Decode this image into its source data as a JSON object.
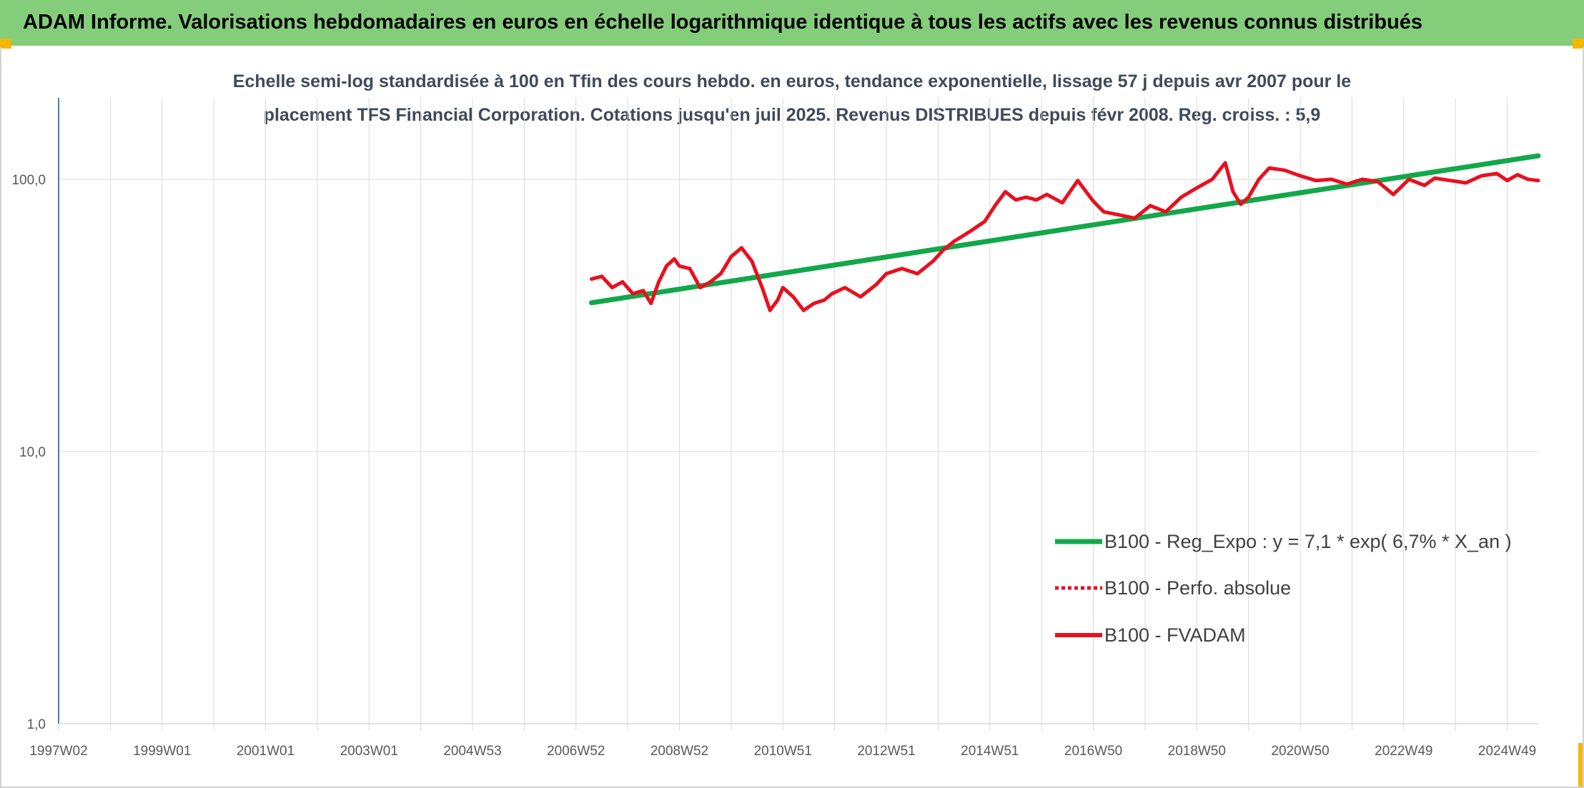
{
  "page_title": "ADAM Informe. Valorisations hebdomadaires en euros en échelle logarithmique identique à tous les actifs avec les revenus connus distribués",
  "colors": {
    "banner": "#84cd7b",
    "corner_accent": "#f5b800",
    "regression": "#12a84a",
    "fvadam": "#e8101e",
    "perfo_absolue": "#e8101e",
    "grid": "#d9d9d9",
    "axis": "#4a7ebb"
  },
  "chart_data": {
    "type": "line",
    "title_lines": [
      "Echelle semi-log standardisée à 100 en Tfin des cours hebdo. en euros, tendance exponentielle, lissage 57 j depuis avr 2007 pour le",
      "placement TFS Financial Corporation. Cotations jusqu'en juil 2025. Revenus DISTRIBUES depuis févr 2008. Reg. croiss. : 5,9"
    ],
    "y_scale": "log",
    "ylim": [
      1,
      200
    ],
    "y_ticks": [
      {
        "value": 1,
        "label": "1,0"
      },
      {
        "value": 10,
        "label": "10,0"
      },
      {
        "value": 100,
        "label": "100,0"
      }
    ],
    "xlim": [
      1997.0,
      2025.6
    ],
    "x_ticks": [
      {
        "value": 1997.0,
        "label": "1997W02"
      },
      {
        "value": 1999.0,
        "label": "1999W01"
      },
      {
        "value": 2001.0,
        "label": "2001W01"
      },
      {
        "value": 2003.0,
        "label": "2003W01"
      },
      {
        "value": 2005.0,
        "label": "2004W53"
      },
      {
        "value": 2007.0,
        "label": "2006W52"
      },
      {
        "value": 2009.0,
        "label": "2008W52"
      },
      {
        "value": 2011.0,
        "label": "2010W51"
      },
      {
        "value": 2013.0,
        "label": "2012W51"
      },
      {
        "value": 2015.0,
        "label": "2014W51"
      },
      {
        "value": 2017.0,
        "label": "2016W50"
      },
      {
        "value": 2019.0,
        "label": "2018W50"
      },
      {
        "value": 2021.0,
        "label": "2020W50"
      },
      {
        "value": 2023.0,
        "label": "2022W49"
      },
      {
        "value": 2025.0,
        "label": "2024W49"
      }
    ],
    "legend_position": "bottom-right",
    "series": [
      {
        "name": "B100 - Reg_Expo : y = 7,1 * exp( 6,7% *  X_an )",
        "style": "solid-thick",
        "color": "#12a84a",
        "x": [
          2007.3,
          2025.6
        ],
        "y": [
          35.2,
          122.0
        ]
      },
      {
        "name": "B100 - Perfo. absolue",
        "style": "dotted",
        "color": "#e8101e",
        "x": [],
        "y": []
      },
      {
        "name": "B100 - FVADAM",
        "style": "solid",
        "color": "#e8101e",
        "x": [
          2007.3,
          2007.5,
          2007.7,
          2007.9,
          2008.1,
          2008.3,
          2008.45,
          2008.6,
          2008.75,
          2008.9,
          2009.0,
          2009.2,
          2009.4,
          2009.6,
          2009.8,
          2010.0,
          2010.2,
          2010.4,
          2010.6,
          2010.75,
          2010.9,
          2011.0,
          2011.2,
          2011.4,
          2011.6,
          2011.8,
          2011.95,
          2012.2,
          2012.5,
          2012.8,
          2013.0,
          2013.3,
          2013.6,
          2013.9,
          2014.1,
          2014.3,
          2014.6,
          2014.9,
          2015.1,
          2015.3,
          2015.5,
          2015.7,
          2015.9,
          2016.1,
          2016.4,
          2016.7,
          2017.0,
          2017.2,
          2017.5,
          2017.8,
          2018.1,
          2018.4,
          2018.7,
          2019.0,
          2019.3,
          2019.55,
          2019.7,
          2019.85,
          2020.0,
          2020.2,
          2020.4,
          2020.7,
          2021.0,
          2021.3,
          2021.6,
          2021.9,
          2022.2,
          2022.5,
          2022.8,
          2023.1,
          2023.4,
          2023.6,
          2023.9,
          2024.2,
          2024.5,
          2024.8,
          2025.0,
          2025.2,
          2025.4,
          2025.6
        ],
        "y": [
          43,
          44,
          40,
          42,
          38,
          39,
          35,
          42,
          48,
          51,
          48,
          47,
          40,
          42,
          45,
          52,
          56,
          50,
          40,
          33,
          36,
          40,
          37,
          33,
          35,
          36,
          38,
          40,
          37,
          41,
          45,
          47,
          45,
          50,
          55,
          59,
          64,
          70,
          80,
          90,
          84,
          86,
          84,
          88,
          82,
          99,
          83,
          76,
          74,
          72,
          80,
          76,
          86,
          93,
          100,
          115,
          90,
          81,
          86,
          100,
          110,
          108,
          103,
          99,
          100,
          96,
          100,
          98,
          88,
          100,
          95,
          101,
          99,
          97,
          103,
          105,
          99,
          104,
          100,
          99
        ]
      }
    ]
  }
}
